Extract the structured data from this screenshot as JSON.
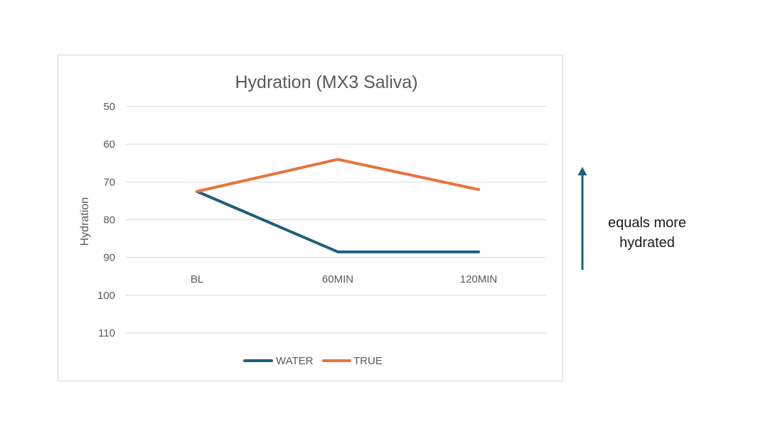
{
  "chart_data": {
    "type": "line",
    "title": "Hydration (MX3 Saliva)",
    "xlabel": "",
    "ylabel": "Hydration",
    "categories": [
      "BL",
      "60MIN",
      "120MIN"
    ],
    "y_ticks": [
      50,
      60,
      70,
      80,
      90,
      100,
      110
    ],
    "ylim": [
      50,
      110
    ],
    "y_inverted": true,
    "grid": true,
    "legend_position": "bottom",
    "series": [
      {
        "name": "WATER",
        "color": "#1f5f7a",
        "values": [
          72.5,
          88.5,
          88.5
        ]
      },
      {
        "name": "TRUE",
        "color": "#e8743b",
        "values": [
          72.5,
          64,
          72
        ]
      }
    ]
  },
  "annotation": {
    "line1": "equals more",
    "line2": "hydrated",
    "arrow_icon": "arrow-up-icon",
    "arrow_color": "#1f5f7a"
  }
}
